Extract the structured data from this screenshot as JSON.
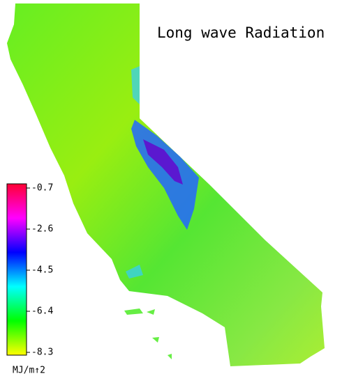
{
  "title": "Long wave Radiation",
  "colorbar": {
    "range": [
      -8.3,
      -0.7
    ],
    "ticks": [
      -0.7,
      -2.6,
      -4.5,
      -6.4,
      -8.3
    ],
    "unit": "MJ/m↑2",
    "colors": [
      "#ffff00",
      "#00ff00",
      "#00ffff",
      "#0000ff",
      "#ff00ff",
      "#ff0033"
    ]
  }
}
